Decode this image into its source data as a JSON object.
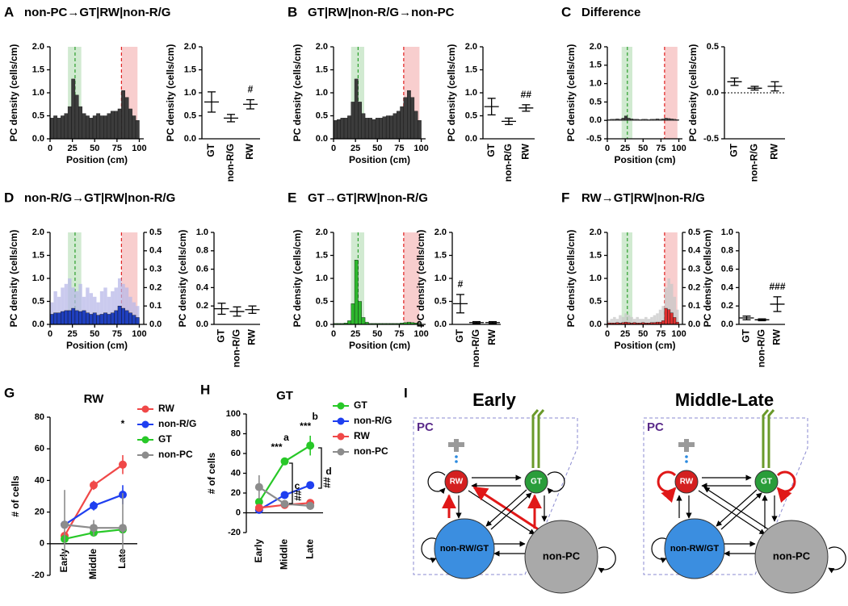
{
  "chart_data": [
    {
      "type": "histogram",
      "panel": "A",
      "title": "non-PC→GT|RW|non-R/G",
      "xlabel": "Position (cm)",
      "ylabel": "PC density (cells/cm)",
      "bins": [
        0,
        4,
        8,
        12,
        16,
        20,
        24,
        28,
        32,
        36,
        40,
        44,
        48,
        52,
        56,
        60,
        64,
        68,
        72,
        76,
        80,
        84,
        88,
        92,
        96,
        100
      ],
      "series": [
        {
          "color": "#3c3c3c",
          "values": [
            0.45,
            0.5,
            0.45,
            0.5,
            0.55,
            0.7,
            1.3,
            0.95,
            0.7,
            0.55,
            0.5,
            0.45,
            0.5,
            0.55,
            0.5,
            0.5,
            0.55,
            0.6,
            0.6,
            0.65,
            1.05,
            0.9,
            0.65,
            0.5,
            0.4
          ]
        }
      ],
      "bands": [
        {
          "range": [
            20,
            35
          ],
          "marker": 28,
          "color": "#2ca02c"
        },
        {
          "range": [
            80,
            98
          ],
          "marker": 80,
          "color": "#e02020"
        }
      ],
      "xlim": [
        0,
        105
      ],
      "xticks": [
        0,
        25,
        50,
        75,
        100
      ],
      "ylim": [
        0,
        2
      ],
      "yticks": [
        {
          "value": 0,
          "label": "0.0"
        },
        0.5,
        {
          "value": 1,
          "label": "1.0"
        },
        1.5,
        {
          "value": 2,
          "label": "2.0"
        }
      ]
    },
    {
      "type": "dot",
      "ylabel": "PC density (cells/cm)",
      "categories": [
        "GT",
        "non-R/G",
        "RW"
      ],
      "values": [
        0.8,
        0.45,
        0.75
      ],
      "errors": [
        0.22,
        0.08,
        0.1
      ],
      "annotations": [
        null,
        null,
        "#"
      ],
      "ylim": [
        0,
        2
      ],
      "yticks": [
        {
          "value": 0,
          "label": "0.0"
        },
        0.5,
        {
          "value": 1,
          "label": "1.0"
        },
        1.5,
        {
          "value": 2,
          "label": "2.0"
        }
      ]
    },
    {
      "type": "histogram",
      "panel": "B",
      "title": "GT|RW|non-R/G→non-PC",
      "xlabel": "Position (cm)",
      "ylabel": "PC density (cells/cm)",
      "bins": [
        0,
        4,
        8,
        12,
        16,
        20,
        24,
        28,
        32,
        36,
        40,
        44,
        48,
        52,
        56,
        60,
        64,
        68,
        72,
        76,
        80,
        84,
        88,
        92,
        96,
        100
      ],
      "series": [
        {
          "color": "#3c3c3c",
          "values": [
            0.4,
            0.42,
            0.45,
            0.45,
            0.5,
            0.8,
            1.3,
            0.8,
            0.55,
            0.45,
            0.45,
            0.42,
            0.45,
            0.45,
            0.48,
            0.5,
            0.5,
            0.55,
            0.6,
            0.7,
            0.9,
            1.05,
            0.9,
            0.6,
            0.4
          ]
        }
      ],
      "bands": [
        {
          "range": [
            20,
            35
          ],
          "marker": 28,
          "color": "#2ca02c"
        },
        {
          "range": [
            80,
            98
          ],
          "marker": 80,
          "color": "#e02020"
        }
      ],
      "xlim": [
        0,
        105
      ],
      "xticks": [
        0,
        25,
        50,
        75,
        100
      ],
      "ylim": [
        0,
        2
      ],
      "yticks": [
        {
          "value": 0,
          "label": "0.0"
        },
        0.5,
        {
          "value": 1,
          "label": "1.0"
        },
        1.5,
        {
          "value": 2,
          "label": "2.0"
        }
      ]
    },
    {
      "type": "dot",
      "ylabel": "PC density (cells/cm)",
      "categories": [
        "GT",
        "non-R/G",
        "RW"
      ],
      "values": [
        0.7,
        0.38,
        0.67
      ],
      "errors": [
        0.18,
        0.07,
        0.07
      ],
      "annotations": [
        null,
        null,
        "##"
      ],
      "ylim": [
        0,
        2
      ],
      "yticks": [
        {
          "value": 0,
          "label": "0.0"
        },
        0.5,
        {
          "value": 1,
          "label": "1.0"
        },
        1.5,
        {
          "value": 2,
          "label": "2.0"
        }
      ]
    },
    {
      "type": "histogram",
      "panel": "C",
      "title": "Difference",
      "xlabel": "Position (cm)",
      "ylabel": "PC density (cells/cm)",
      "bins": [
        0,
        4,
        8,
        12,
        16,
        20,
        24,
        28,
        32,
        36,
        40,
        44,
        48,
        52,
        56,
        60,
        64,
        68,
        72,
        76,
        80,
        84,
        88,
        92,
        96,
        100
      ],
      "series": [
        {
          "color": "#3c3c3c",
          "values": [
            0.02,
            0.03,
            0.03,
            0.04,
            0.03,
            0.06,
            0.12,
            0.06,
            0.04,
            0.03,
            0.03,
            0.02,
            0.03,
            0.03,
            0.02,
            0.03,
            0.03,
            0.04,
            0.03,
            0.04,
            0.06,
            0.05,
            0.04,
            0.03,
            0.02
          ]
        }
      ],
      "bands": [
        {
          "range": [
            20,
            35
          ],
          "marker": 28,
          "color": "#2ca02c"
        },
        {
          "range": [
            80,
            98
          ],
          "marker": 80,
          "color": "#e02020"
        }
      ],
      "xlim": [
        0,
        105
      ],
      "xticks": [
        0,
        25,
        50,
        75,
        100
      ],
      "ylim": [
        -0.5,
        2
      ],
      "yticks": [
        -0.5,
        {
          "value": 0,
          "label": "0.0"
        },
        0.5,
        {
          "value": 1,
          "label": "1.0"
        },
        1.5,
        {
          "value": 2,
          "label": "2.0"
        }
      ]
    },
    {
      "type": "dot",
      "ylabel": "PC density (cells/cm)",
      "categories": [
        "GT",
        "non-R/G",
        "RW"
      ],
      "values": [
        0.12,
        0.05,
        0.07
      ],
      "errors": [
        0.04,
        0.02,
        0.05
      ],
      "annotations": [
        null,
        null,
        null
      ],
      "reference_line": 0,
      "ylim": [
        -0.5,
        0.5
      ],
      "yticks": [
        -0.5,
        {
          "value": 0,
          "label": "0.0"
        },
        0.5
      ]
    },
    {
      "type": "histogram",
      "panel": "D",
      "title": "non-R/G→GT|RW|non-R/G",
      "xlabel": "Position (cm)",
      "ylabel": "PC density (cells/cm)",
      "bins": [
        0,
        4,
        8,
        12,
        16,
        20,
        24,
        28,
        32,
        36,
        40,
        44,
        48,
        52,
        56,
        60,
        64,
        68,
        72,
        76,
        80,
        84,
        88,
        92,
        96,
        100
      ],
      "series": [
        {
          "color": "#1f3fbf",
          "values": [
            0.22,
            0.25,
            0.25,
            0.28,
            0.3,
            0.3,
            0.35,
            0.3,
            0.28,
            0.3,
            0.25,
            0.22,
            0.25,
            0.2,
            0.22,
            0.25,
            0.22,
            0.25,
            0.3,
            0.4,
            0.35,
            0.3,
            0.25,
            0.2,
            0.15
          ]
        },
        {
          "color": "#b8b8e8",
          "axis": "y2",
          "values": [
            0.12,
            0.18,
            0.15,
            0.2,
            0.22,
            0.25,
            0.2,
            0.18,
            0.22,
            0.15,
            0.2,
            0.17,
            0.15,
            0.12,
            0.18,
            0.2,
            0.15,
            0.18,
            0.2,
            0.25,
            0.22,
            0.2,
            0.15,
            0.12,
            0.1
          ]
        }
      ],
      "bands": [
        {
          "range": [
            20,
            35
          ],
          "marker": 28,
          "color": "#2ca02c"
        },
        {
          "range": [
            80,
            98
          ],
          "marker": 80,
          "color": "#e02020"
        }
      ],
      "xlim": [
        0,
        105
      ],
      "xticks": [
        0,
        25,
        50,
        75,
        100
      ],
      "ylim": [
        0,
        2
      ],
      "yticks": [
        {
          "value": 0,
          "label": "0.0"
        },
        0.5,
        {
          "value": 1,
          "label": "1.0"
        },
        1.5,
        {
          "value": 2,
          "label": "2.0"
        }
      ],
      "y2lim": [
        0,
        0.5
      ],
      "y2ticks": [
        {
          "value": 0,
          "label": "0.0"
        },
        0.1,
        0.2,
        0.3,
        0.4,
        0.5
      ]
    },
    {
      "type": "dot",
      "ylabel": "PC density (cells/cm)",
      "categories": [
        "GT",
        "non-R/G",
        "RW"
      ],
      "values": [
        0.17,
        0.14,
        0.16
      ],
      "errors": [
        0.06,
        0.05,
        0.04
      ],
      "annotations": [
        null,
        null,
        null
      ],
      "ylim": [
        0,
        1
      ],
      "yticks": [
        {
          "value": 0,
          "label": "0.0"
        },
        0.2,
        0.4,
        0.6,
        0.8,
        {
          "value": 1,
          "label": "1.0"
        }
      ]
    },
    {
      "type": "histogram",
      "panel": "E",
      "title": "GT→GT|RW|non-R/G",
      "xlabel": "Position (cm)",
      "ylabel": "PC density (cells/cm)",
      "bins": [
        0,
        4,
        8,
        12,
        16,
        20,
        24,
        28,
        32,
        36,
        40,
        44,
        48,
        52,
        56,
        60,
        64,
        68,
        72,
        76,
        80,
        84,
        88,
        92,
        96,
        100
      ],
      "series": [
        {
          "color": "#2db82d",
          "values": [
            0.02,
            0.02,
            0.02,
            0.03,
            0.08,
            0.45,
            1.4,
            0.5,
            0.15,
            0.05,
            0.02,
            0.02,
            0.02,
            0.02,
            0.02,
            0.02,
            0.02,
            0.02,
            0.02,
            0.03,
            0.04,
            0.05,
            0.04,
            0.03,
            0.02
          ]
        }
      ],
      "bands": [
        {
          "range": [
            20,
            35
          ],
          "marker": 28,
          "color": "#2ca02c"
        },
        {
          "range": [
            80,
            98
          ],
          "marker": 80,
          "color": "#e02020"
        }
      ],
      "xlim": [
        0,
        105
      ],
      "xticks": [
        0,
        25,
        50,
        75,
        100
      ],
      "ylim": [
        0,
        2
      ],
      "yticks": [
        {
          "value": 0,
          "label": "0.0"
        },
        0.5,
        {
          "value": 1,
          "label": "1.0"
        },
        1.5,
        {
          "value": 2,
          "label": "2.0"
        }
      ]
    },
    {
      "type": "dot",
      "ylabel": "PC density (cells/cm)",
      "categories": [
        "GT",
        "non-R/G",
        "RW"
      ],
      "values": [
        0.45,
        0.04,
        0.04
      ],
      "errors": [
        0.2,
        0.02,
        0.02
      ],
      "annotations": [
        "#",
        null,
        null
      ],
      "ylim": [
        0,
        2
      ],
      "yticks": [
        {
          "value": 0,
          "label": "0.0"
        },
        0.5,
        {
          "value": 1,
          "label": "1.0"
        },
        1.5,
        {
          "value": 2,
          "label": "2.0"
        }
      ]
    },
    {
      "type": "histogram",
      "panel": "F",
      "title": "RW→GT|RW|non-R/G",
      "xlabel": "Position (cm)",
      "ylabel": "PC density (cells/cm)",
      "bins": [
        0,
        4,
        8,
        12,
        16,
        20,
        24,
        28,
        32,
        36,
        40,
        44,
        48,
        52,
        56,
        60,
        64,
        68,
        72,
        76,
        80,
        84,
        88,
        92,
        96,
        100
      ],
      "series": [
        {
          "color": "#e03030",
          "values": [
            0.03,
            0.03,
            0.03,
            0.04,
            0.03,
            0.04,
            0.05,
            0.04,
            0.03,
            0.04,
            0.03,
            0.03,
            0.04,
            0.03,
            0.03,
            0.04,
            0.04,
            0.05,
            0.05,
            0.08,
            0.35,
            0.32,
            0.25,
            0.15,
            0.05
          ]
        },
        {
          "color": "#c8c8c8",
          "axis": "y2",
          "values": [
            0.02,
            0.03,
            0.04,
            0.03,
            0.05,
            0.04,
            0.06,
            0.05,
            0.04,
            0.03,
            0.04,
            0.03,
            0.03,
            0.04,
            0.03,
            0.04,
            0.05,
            0.06,
            0.08,
            0.1,
            0.2,
            0.25,
            0.22,
            0.15,
            0.08
          ]
        }
      ],
      "bands": [
        {
          "range": [
            20,
            35
          ],
          "marker": 28,
          "color": "#2ca02c"
        },
        {
          "range": [
            80,
            98
          ],
          "marker": 80,
          "color": "#e02020"
        }
      ],
      "xlim": [
        0,
        105
      ],
      "xticks": [
        0,
        25,
        50,
        75,
        100
      ],
      "ylim": [
        0,
        2
      ],
      "yticks": [
        {
          "value": 0,
          "label": "0.0"
        },
        0.5,
        {
          "value": 1,
          "label": "1.0"
        },
        1.5,
        {
          "value": 2,
          "label": "2.0"
        }
      ],
      "y2lim": [
        0,
        0.5
      ],
      "y2ticks": [
        {
          "value": 0,
          "label": "0.0"
        },
        0.1,
        0.2,
        0.3,
        0.4,
        0.5
      ]
    },
    {
      "type": "dot",
      "ylabel": "PC density (cells/cm)",
      "categories": [
        "GT",
        "non-R/G",
        "RW"
      ],
      "values": [
        0.07,
        0.05,
        0.22
      ],
      "errors": [
        0.02,
        0.01,
        0.08
      ],
      "annotations": [
        null,
        null,
        "###"
      ],
      "ylim": [
        0,
        1
      ],
      "yticks": [
        {
          "value": 0,
          "label": "0.0"
        },
        0.2,
        0.4,
        0.6,
        0.8,
        {
          "value": 1,
          "label": "1.0"
        }
      ]
    },
    {
      "type": "line",
      "panel": "G",
      "title": "RW",
      "ylabel": "# of cells",
      "categories": [
        "Early",
        "Middle",
        "Late"
      ],
      "series": [
        {
          "name": "RW",
          "color": "#f04848",
          "values": [
            5,
            37,
            50
          ],
          "errors": [
            3,
            3,
            6
          ]
        },
        {
          "name": "non-R/G",
          "color": "#1f3ff0",
          "values": [
            12,
            24,
            31
          ],
          "errors": [
            2,
            3,
            6
          ]
        },
        {
          "name": "GT",
          "color": "#28c828",
          "values": [
            3,
            7,
            9
          ],
          "errors": [
            2,
            2,
            2
          ]
        },
        {
          "name": "non-PC",
          "color": "#8c8c8c",
          "values": [
            12,
            10,
            10
          ],
          "errors": [
            22,
            5,
            22
          ]
        }
      ],
      "annotations": [
        "*"
      ],
      "ylim": [
        -20,
        80
      ],
      "yticks": [
        -20,
        0,
        20,
        40,
        60,
        80
      ]
    },
    {
      "type": "line",
      "panel": "H",
      "title": "GT",
      "ylabel": "# of cells",
      "categories": [
        "Early",
        "Middle",
        "Late"
      ],
      "series": [
        {
          "name": "GT",
          "color": "#28c828",
          "values": [
            11,
            52,
            68
          ],
          "errors": [
            4,
            3,
            10
          ]
        },
        {
          "name": "non-R/G",
          "color": "#1f3ff0",
          "values": [
            3,
            18,
            28
          ],
          "errors": [
            2,
            2,
            3
          ]
        },
        {
          "name": "RW",
          "color": "#f04848",
          "values": [
            5,
            8,
            10
          ],
          "errors": [
            2,
            2,
            3
          ]
        },
        {
          "name": "non-PC",
          "color": "#8c8c8c",
          "values": [
            26,
            9,
            7
          ],
          "errors": [
            12,
            3,
            4
          ]
        }
      ],
      "annotations": [
        "a",
        "***",
        "b",
        "***",
        "c",
        "##",
        "d",
        "##"
      ],
      "ylim": [
        -20,
        100
      ],
      "yticks": [
        -20,
        0,
        20,
        40,
        60,
        80,
        100
      ]
    }
  ],
  "diagram": {
    "panel": "I",
    "panels": [
      {
        "title": "Early",
        "group": "PC",
        "nodes": [
          "RW",
          "GT",
          "non-RW/GT",
          "non-PC"
        ]
      },
      {
        "title": "Middle-Late",
        "group": "PC",
        "nodes": [
          "RW",
          "GT",
          "non-RW/GT",
          "non-PC"
        ]
      }
    ]
  }
}
